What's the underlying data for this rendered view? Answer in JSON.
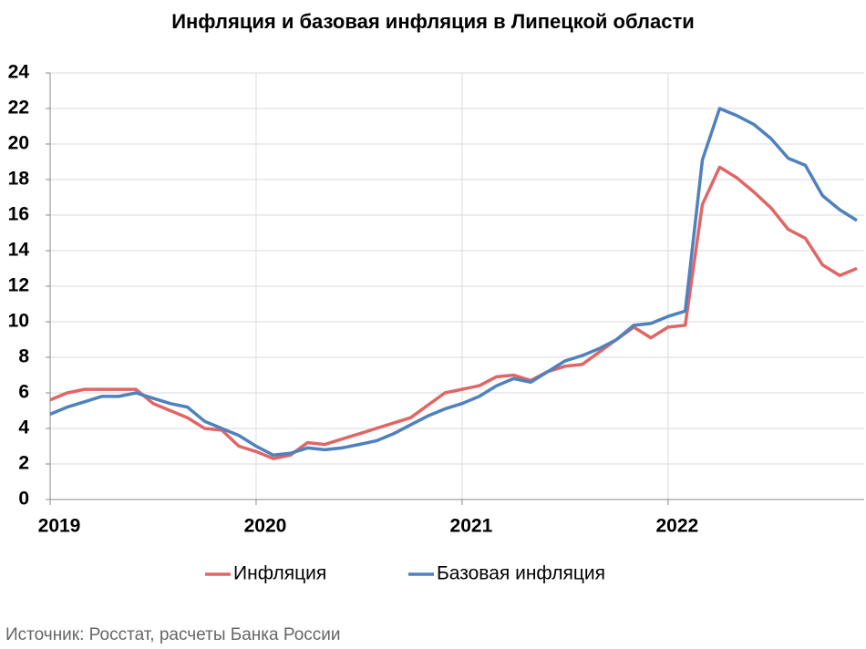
{
  "chart_data": {
    "type": "line",
    "title": "Инфляция и базовая инфляция в Липецкой области",
    "source": "Источник: Росстат, расчеты Банка России",
    "categories": [
      "2019",
      null,
      null,
      null,
      null,
      null,
      null,
      null,
      null,
      null,
      null,
      null,
      "2020",
      null,
      null,
      null,
      null,
      null,
      null,
      null,
      null,
      null,
      null,
      null,
      "2021",
      null,
      null,
      null,
      null,
      null,
      null,
      null,
      null,
      null,
      null,
      null,
      "2022",
      null,
      null,
      null,
      null,
      null,
      null,
      null,
      null,
      null,
      null,
      null
    ],
    "series": [
      {
        "name": "Инфляция",
        "color": "#e06666",
        "values": [
          5.6,
          6.0,
          6.2,
          6.2,
          6.2,
          6.2,
          5.4,
          5.0,
          4.6,
          4.0,
          3.9,
          3.0,
          2.7,
          2.3,
          2.5,
          3.2,
          3.1,
          3.4,
          3.7,
          4.0,
          4.3,
          4.6,
          5.3,
          6.0,
          6.2,
          6.4,
          6.9,
          7.0,
          6.7,
          7.2,
          7.5,
          7.6,
          8.3,
          9.0,
          9.7,
          9.1,
          9.7,
          9.8,
          16.6,
          18.7,
          18.1,
          17.3,
          16.4,
          15.2,
          14.7,
          13.2,
          12.6,
          13.0
        ]
      },
      {
        "name": "Базовая инфляция",
        "color": "#4f81bd",
        "values": [
          4.8,
          5.2,
          5.5,
          5.8,
          5.8,
          6.0,
          5.7,
          5.4,
          5.2,
          4.4,
          4.0,
          3.6,
          3.0,
          2.5,
          2.6,
          2.9,
          2.8,
          2.9,
          3.1,
          3.3,
          3.7,
          4.2,
          4.7,
          5.1,
          5.4,
          5.8,
          6.4,
          6.8,
          6.6,
          7.2,
          7.8,
          8.1,
          8.5,
          9.0,
          9.8,
          9.9,
          10.3,
          10.6,
          19.1,
          22.0,
          21.6,
          21.1,
          20.3,
          19.2,
          18.8,
          17.1,
          16.3,
          15.7
        ]
      }
    ],
    "ylim": [
      0,
      24
    ],
    "yticks": [
      0,
      2,
      4,
      6,
      8,
      10,
      12,
      14,
      16,
      18,
      20,
      22,
      24
    ],
    "grid": true
  }
}
